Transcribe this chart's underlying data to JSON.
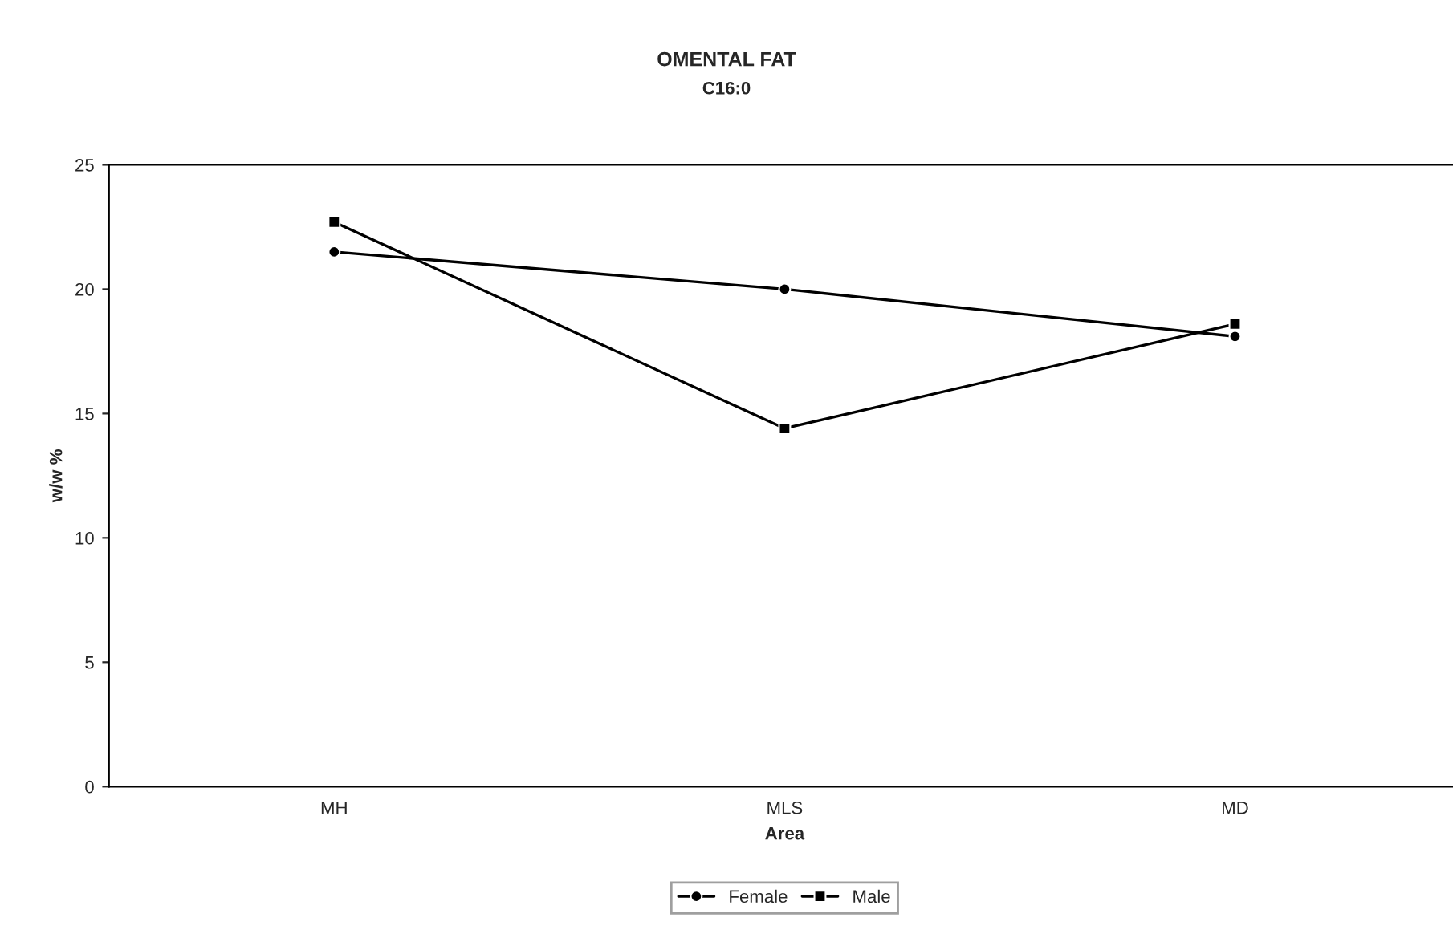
{
  "chart_data": {
    "type": "line",
    "title": "OMENTAL FAT",
    "subtitle": "C16:0",
    "xlabel": "Area",
    "ylabel": "w/w %",
    "categories": [
      "MH",
      "MLS",
      "MD"
    ],
    "series": [
      {
        "name": "Female",
        "color": "#000000",
        "marker": "circle",
        "values": [
          21.5,
          20.0,
          18.1
        ]
      },
      {
        "name": "Male",
        "color": "#000000",
        "marker": "square",
        "values": [
          22.7,
          14.4,
          18.6
        ]
      }
    ],
    "ylim": [
      0,
      25
    ],
    "yticks": [
      0,
      5,
      10,
      15,
      20,
      25
    ],
    "grid": false,
    "legend": "bottom",
    "line_style": "solid"
  }
}
